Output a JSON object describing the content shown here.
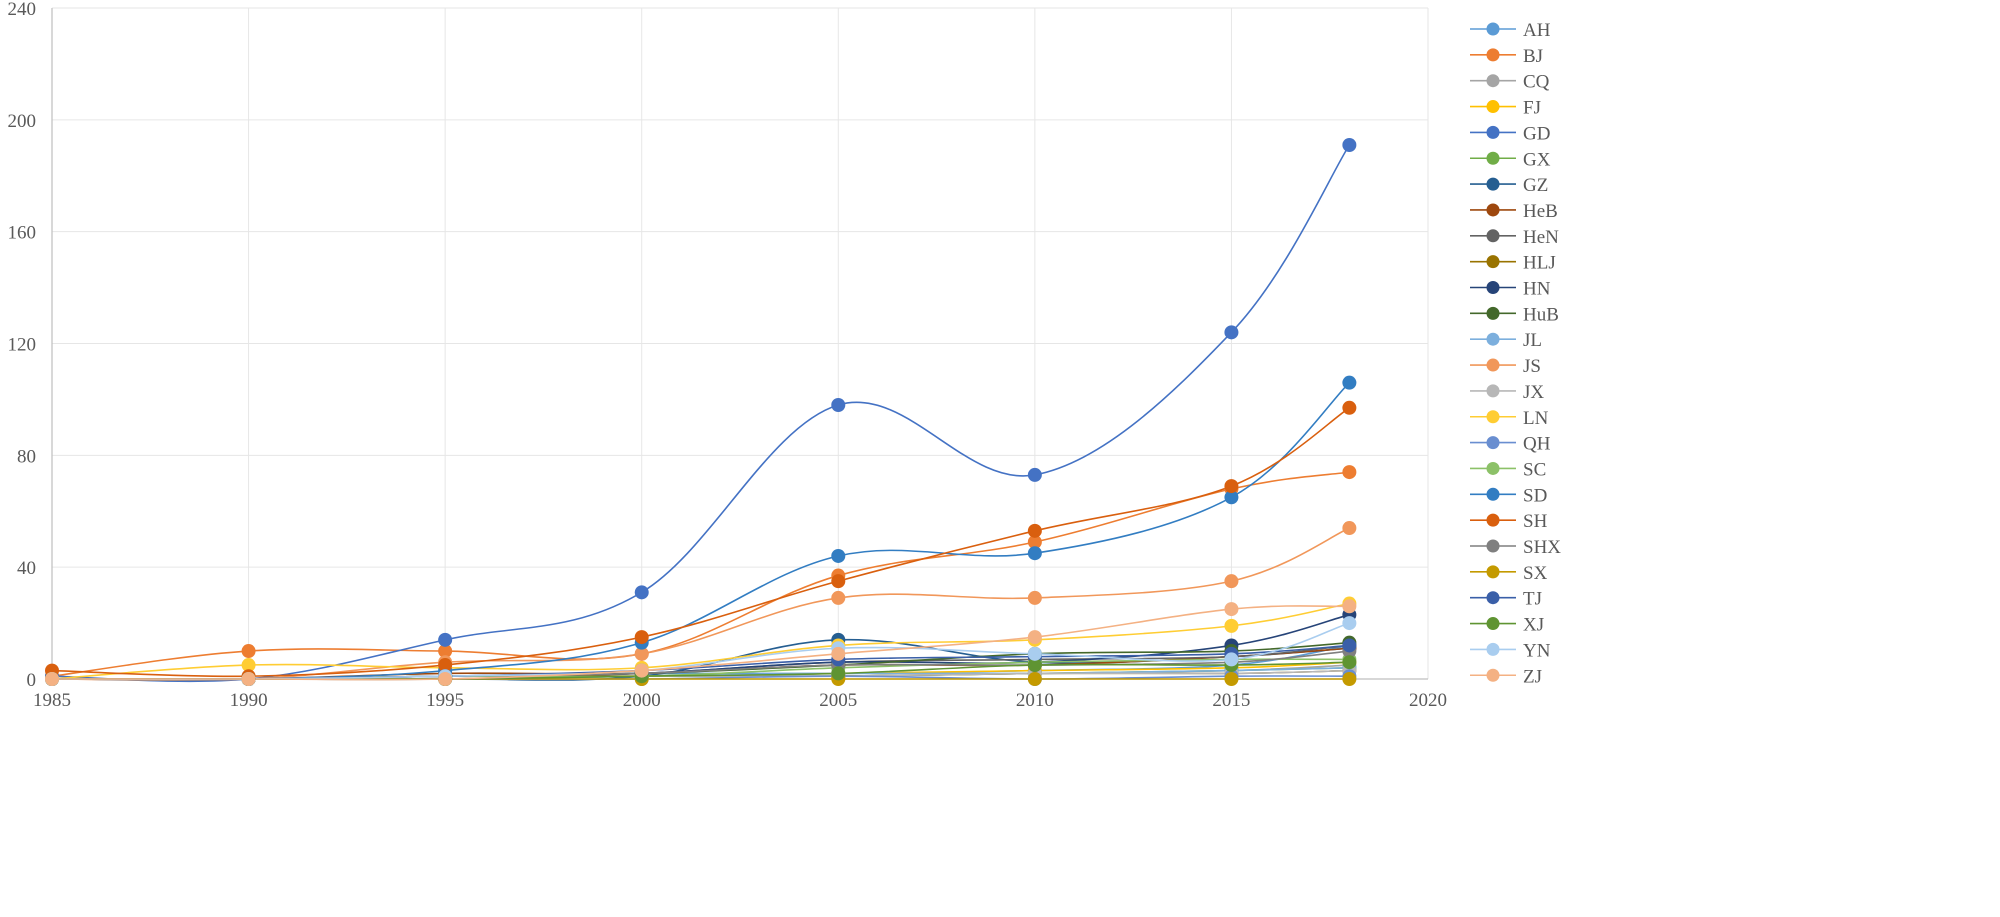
{
  "chart_data": {
    "type": "line",
    "title": "",
    "xlabel": "",
    "ylabel": "",
    "xlim": [
      1985,
      2020
    ],
    "ylim": [
      0,
      240
    ],
    "xticks": [
      1985,
      1990,
      1995,
      2000,
      2005,
      2010,
      2015,
      2020
    ],
    "yticks": [
      0,
      40,
      80,
      120,
      160,
      200,
      240
    ],
    "x": [
      1985,
      1990,
      1995,
      2000,
      2005,
      2010,
      2015,
      2018
    ],
    "grid": true,
    "smooth": true,
    "legend_position": "right",
    "series": [
      {
        "name": "AH",
        "color": "#5b9bd5",
        "values": [
          0,
          0,
          1,
          2,
          2,
          3,
          5,
          12
        ]
      },
      {
        "name": "BJ",
        "color": "#ed7d31",
        "values": [
          1,
          10,
          10,
          9,
          37,
          49,
          68,
          74
        ]
      },
      {
        "name": "CQ",
        "color": "#a5a5a5",
        "values": [
          0,
          0,
          0,
          1,
          1,
          2,
          3,
          5
        ]
      },
      {
        "name": "FJ",
        "color": "#ffc000",
        "values": [
          0,
          0,
          1,
          1,
          2,
          3,
          4,
          6
        ]
      },
      {
        "name": "GD",
        "color": "#4472c4",
        "values": [
          1,
          0,
          14,
          31,
          98,
          73,
          124,
          191
        ]
      },
      {
        "name": "GX",
        "color": "#70ad47",
        "values": [
          0,
          0,
          0,
          1,
          1,
          2,
          3,
          4
        ]
      },
      {
        "name": "GZ",
        "color": "#255e91",
        "values": [
          0,
          0,
          0,
          1,
          14,
          6,
          8,
          11
        ]
      },
      {
        "name": "HeB",
        "color": "#9e480e",
        "values": [
          0,
          0,
          2,
          2,
          5,
          5,
          8,
          11
        ]
      },
      {
        "name": "HeN",
        "color": "#636363",
        "values": [
          0,
          0,
          0,
          2,
          6,
          7,
          8,
          12
        ]
      },
      {
        "name": "HLJ",
        "color": "#997300",
        "values": [
          0,
          0,
          1,
          1,
          1,
          2,
          2,
          3
        ]
      },
      {
        "name": "HN",
        "color": "#264478",
        "values": [
          0,
          0,
          1,
          2,
          6,
          6,
          12,
          23
        ]
      },
      {
        "name": "HuB",
        "color": "#43682b",
        "values": [
          0,
          0,
          1,
          2,
          5,
          9,
          10,
          13
        ]
      },
      {
        "name": "JL",
        "color": "#7cafdd",
        "values": [
          0,
          0,
          0,
          1,
          2,
          2,
          3,
          4
        ]
      },
      {
        "name": "JS",
        "color": "#f1975a",
        "values": [
          0,
          0,
          6,
          9,
          29,
          29,
          35,
          54
        ]
      },
      {
        "name": "JX",
        "color": "#b7b7b7",
        "values": [
          0,
          0,
          0,
          1,
          1,
          2,
          2,
          3
        ]
      },
      {
        "name": "LN",
        "color": "#ffcd33",
        "values": [
          0,
          5,
          4,
          4,
          12,
          14,
          19,
          27
        ]
      },
      {
        "name": "QH",
        "color": "#698ed0",
        "values": [
          0,
          0,
          0,
          0,
          1,
          0,
          1,
          1
        ]
      },
      {
        "name": "SC",
        "color": "#8cc168",
        "values": [
          0,
          0,
          1,
          1,
          4,
          6,
          7,
          7
        ]
      },
      {
        "name": "SD",
        "color": "#327dc2",
        "values": [
          0,
          0,
          3,
          13,
          44,
          45,
          65,
          106
        ]
      },
      {
        "name": "SH",
        "color": "#d95f0e",
        "values": [
          3,
          1,
          5,
          15,
          35,
          53,
          69,
          97
        ]
      },
      {
        "name": "SHX",
        "color": "#7f7f7f",
        "values": [
          0,
          0,
          1,
          2,
          5,
          5,
          6,
          10
        ]
      },
      {
        "name": "SX",
        "color": "#c49a00",
        "values": [
          0,
          0,
          0,
          0,
          0,
          0,
          0,
          0
        ]
      },
      {
        "name": "TJ",
        "color": "#3a5fa8",
        "values": [
          0,
          0,
          1,
          3,
          7,
          8,
          9,
          12
        ]
      },
      {
        "name": "XJ",
        "color": "#5f9432",
        "values": [
          0,
          0,
          0,
          1,
          2,
          5,
          5,
          6
        ]
      },
      {
        "name": "YN",
        "color": "#a9cdef",
        "values": [
          0,
          0,
          1,
          3,
          11,
          9,
          7,
          20
        ]
      },
      {
        "name": "ZJ",
        "color": "#f4b183",
        "values": [
          0,
          0,
          0,
          3,
          9,
          15,
          25,
          26
        ]
      }
    ]
  }
}
